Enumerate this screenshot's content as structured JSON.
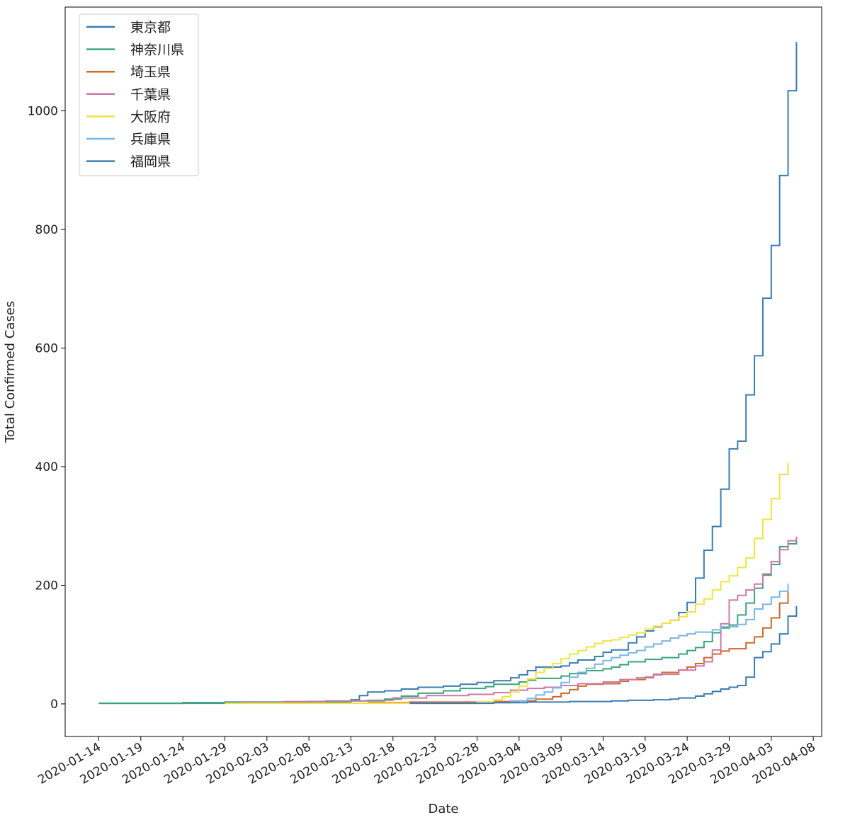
{
  "chart_data": {
    "type": "line",
    "step": true,
    "title": "",
    "xlabel": "Date",
    "ylabel": "Total Confirmed Cases",
    "xlim": [
      "2020-01-10",
      "2020-04-09"
    ],
    "ylim": [
      -55,
      1175
    ],
    "x_ticks": [
      "2020-01-14",
      "2020-01-19",
      "2020-01-24",
      "2020-01-29",
      "2020-02-03",
      "2020-02-08",
      "2020-02-13",
      "2020-02-18",
      "2020-02-23",
      "2020-02-28",
      "2020-03-04",
      "2020-03-09",
      "2020-03-14",
      "2020-03-19",
      "2020-03-24",
      "2020-03-29",
      "2020-04-03",
      "2020-04-08"
    ],
    "y_ticks": [
      0,
      200,
      400,
      600,
      800,
      1000
    ],
    "legend_position": "upper-left",
    "grid": false,
    "series": [
      {
        "name": "東京都",
        "color": "#3a7db5",
        "points": [
          [
            "2020-01-14",
            1
          ],
          [
            "2020-01-24",
            2
          ],
          [
            "2020-01-29",
            3
          ],
          [
            "2020-02-03",
            3
          ],
          [
            "2020-02-08",
            4
          ],
          [
            "2020-02-13",
            7
          ],
          [
            "2020-02-14",
            14
          ],
          [
            "2020-02-15",
            20
          ],
          [
            "2020-02-17",
            22
          ],
          [
            "2020-02-19",
            25
          ],
          [
            "2020-02-21",
            28
          ],
          [
            "2020-02-24",
            30
          ],
          [
            "2020-02-26",
            33
          ],
          [
            "2020-02-28",
            36
          ],
          [
            "2020-03-01",
            39
          ],
          [
            "2020-03-03",
            44
          ],
          [
            "2020-03-04",
            49
          ],
          [
            "2020-03-05",
            56
          ],
          [
            "2020-03-06",
            62
          ],
          [
            "2020-03-09",
            64
          ],
          [
            "2020-03-10",
            69
          ],
          [
            "2020-03-11",
            74
          ],
          [
            "2020-03-13",
            80
          ],
          [
            "2020-03-14",
            87
          ],
          [
            "2020-03-15",
            91
          ],
          [
            "2020-03-17",
            103
          ],
          [
            "2020-03-18",
            113
          ],
          [
            "2020-03-19",
            123
          ],
          [
            "2020-03-20",
            130
          ],
          [
            "2020-03-21",
            136
          ],
          [
            "2020-03-22",
            141
          ],
          [
            "2020-03-23",
            154
          ],
          [
            "2020-03-24",
            171
          ],
          [
            "2020-03-25",
            212
          ],
          [
            "2020-03-26",
            259
          ],
          [
            "2020-03-27",
            299
          ],
          [
            "2020-03-28",
            362
          ],
          [
            "2020-03-29",
            430
          ],
          [
            "2020-03-30",
            443
          ],
          [
            "2020-03-31",
            521
          ],
          [
            "2020-04-01",
            587
          ],
          [
            "2020-04-02",
            684
          ],
          [
            "2020-04-03",
            773
          ],
          [
            "2020-04-04",
            891
          ],
          [
            "2020-04-05",
            1034
          ],
          [
            "2020-04-06",
            1116
          ]
        ]
      },
      {
        "name": "神奈川県",
        "color": "#3aa57a",
        "points": [
          [
            "2020-01-14",
            1
          ],
          [
            "2020-01-29",
            2
          ],
          [
            "2020-02-08",
            3
          ],
          [
            "2020-02-13",
            5
          ],
          [
            "2020-02-17",
            8
          ],
          [
            "2020-02-19",
            13
          ],
          [
            "2020-02-21",
            18
          ],
          [
            "2020-02-24",
            22
          ],
          [
            "2020-02-26",
            26
          ],
          [
            "2020-02-29",
            29
          ],
          [
            "2020-03-01",
            33
          ],
          [
            "2020-03-04",
            37
          ],
          [
            "2020-03-05",
            40
          ],
          [
            "2020-03-06",
            43
          ],
          [
            "2020-03-09",
            47
          ],
          [
            "2020-03-10",
            51
          ],
          [
            "2020-03-12",
            56
          ],
          [
            "2020-03-14",
            59
          ],
          [
            "2020-03-15",
            62
          ],
          [
            "2020-03-16",
            66
          ],
          [
            "2020-03-17",
            71
          ],
          [
            "2020-03-19",
            75
          ],
          [
            "2020-03-21",
            78
          ],
          [
            "2020-03-23",
            84
          ],
          [
            "2020-03-24",
            90
          ],
          [
            "2020-03-25",
            95
          ],
          [
            "2020-03-26",
            105
          ],
          [
            "2020-03-27",
            120
          ],
          [
            "2020-03-28",
            128
          ],
          [
            "2020-03-29",
            133
          ],
          [
            "2020-03-30",
            150
          ],
          [
            "2020-03-31",
            170
          ],
          [
            "2020-04-01",
            195
          ],
          [
            "2020-04-02",
            217
          ],
          [
            "2020-04-03",
            235
          ],
          [
            "2020-04-04",
            265
          ],
          [
            "2020-04-05",
            270
          ],
          [
            "2020-04-06",
            280
          ]
        ]
      },
      {
        "name": "埼玉県",
        "color": "#d0692b",
        "points": [
          [
            "2020-02-15",
            2
          ],
          [
            "2020-02-20",
            3
          ],
          [
            "2020-02-25",
            3
          ],
          [
            "2020-03-01",
            4
          ],
          [
            "2020-03-04",
            5
          ],
          [
            "2020-03-06",
            8
          ],
          [
            "2020-03-08",
            12
          ],
          [
            "2020-03-09",
            18
          ],
          [
            "2020-03-10",
            24
          ],
          [
            "2020-03-11",
            30
          ],
          [
            "2020-03-12",
            33
          ],
          [
            "2020-03-14",
            34
          ],
          [
            "2020-03-16",
            38
          ],
          [
            "2020-03-17",
            41
          ],
          [
            "2020-03-19",
            45
          ],
          [
            "2020-03-20",
            49
          ],
          [
            "2020-03-21",
            53
          ],
          [
            "2020-03-23",
            57
          ],
          [
            "2020-03-24",
            62
          ],
          [
            "2020-03-25",
            68
          ],
          [
            "2020-03-26",
            78
          ],
          [
            "2020-03-27",
            84
          ],
          [
            "2020-03-28",
            89
          ],
          [
            "2020-03-29",
            93
          ],
          [
            "2020-03-31",
            103
          ],
          [
            "2020-04-01",
            113
          ],
          [
            "2020-04-02",
            128
          ],
          [
            "2020-04-03",
            145
          ],
          [
            "2020-04-04",
            170
          ],
          [
            "2020-04-05",
            190
          ]
        ]
      },
      {
        "name": "千葉県",
        "color": "#cc79a7",
        "points": [
          [
            "2020-01-31",
            2
          ],
          [
            "2020-02-05",
            4
          ],
          [
            "2020-02-10",
            5
          ],
          [
            "2020-02-15",
            6
          ],
          [
            "2020-02-18",
            10
          ],
          [
            "2020-02-22",
            14
          ],
          [
            "2020-02-27",
            16
          ],
          [
            "2020-03-01",
            19
          ],
          [
            "2020-03-03",
            23
          ],
          [
            "2020-03-05",
            26
          ],
          [
            "2020-03-07",
            28
          ],
          [
            "2020-03-09",
            31
          ],
          [
            "2020-03-11",
            34
          ],
          [
            "2020-03-14",
            37
          ],
          [
            "2020-03-16",
            41
          ],
          [
            "2020-03-18",
            44
          ],
          [
            "2020-03-20",
            50
          ],
          [
            "2020-03-23",
            57
          ],
          [
            "2020-03-25",
            64
          ],
          [
            "2020-03-26",
            71
          ],
          [
            "2020-03-27",
            91
          ],
          [
            "2020-03-28",
            135
          ],
          [
            "2020-03-29",
            175
          ],
          [
            "2020-03-30",
            183
          ],
          [
            "2020-03-31",
            192
          ],
          [
            "2020-04-01",
            202
          ],
          [
            "2020-04-02",
            219
          ],
          [
            "2020-04-03",
            240
          ],
          [
            "2020-04-04",
            260
          ],
          [
            "2020-04-05",
            275
          ],
          [
            "2020-04-06",
            282
          ]
        ]
      },
      {
        "name": "大阪府",
        "color": "#f0e442",
        "points": [
          [
            "2020-01-29",
            1
          ],
          [
            "2020-02-01",
            1
          ],
          [
            "2020-02-28",
            3
          ],
          [
            "2020-03-01",
            7
          ],
          [
            "2020-03-02",
            12
          ],
          [
            "2020-03-03",
            20
          ],
          [
            "2020-03-04",
            30
          ],
          [
            "2020-03-05",
            42
          ],
          [
            "2020-03-06",
            53
          ],
          [
            "2020-03-07",
            60
          ],
          [
            "2020-03-08",
            68
          ],
          [
            "2020-03-09",
            76
          ],
          [
            "2020-03-10",
            84
          ],
          [
            "2020-03-11",
            90
          ],
          [
            "2020-03-12",
            96
          ],
          [
            "2020-03-13",
            102
          ],
          [
            "2020-03-14",
            106
          ],
          [
            "2020-03-15",
            108
          ],
          [
            "2020-03-16",
            112
          ],
          [
            "2020-03-17",
            116
          ],
          [
            "2020-03-18",
            120
          ],
          [
            "2020-03-19",
            126
          ],
          [
            "2020-03-20",
            131
          ],
          [
            "2020-03-21",
            136
          ],
          [
            "2020-03-22",
            141
          ],
          [
            "2020-03-23",
            147
          ],
          [
            "2020-03-24",
            155
          ],
          [
            "2020-03-25",
            168
          ],
          [
            "2020-03-26",
            177
          ],
          [
            "2020-03-27",
            192
          ],
          [
            "2020-03-28",
            206
          ],
          [
            "2020-03-29",
            216
          ],
          [
            "2020-03-30",
            230
          ],
          [
            "2020-03-31",
            246
          ],
          [
            "2020-04-01",
            279
          ],
          [
            "2020-04-02",
            311
          ],
          [
            "2020-04-03",
            346
          ],
          [
            "2020-04-04",
            387
          ],
          [
            "2020-04-05",
            407
          ]
        ]
      },
      {
        "name": "兵庫県",
        "color": "#7ab6e8",
        "points": [
          [
            "2020-03-01",
            2
          ],
          [
            "2020-03-03",
            5
          ],
          [
            "2020-03-05",
            9
          ],
          [
            "2020-03-06",
            15
          ],
          [
            "2020-03-07",
            20
          ],
          [
            "2020-03-08",
            27
          ],
          [
            "2020-03-09",
            36
          ],
          [
            "2020-03-10",
            45
          ],
          [
            "2020-03-11",
            53
          ],
          [
            "2020-03-12",
            60
          ],
          [
            "2020-03-13",
            67
          ],
          [
            "2020-03-14",
            73
          ],
          [
            "2020-03-15",
            78
          ],
          [
            "2020-03-16",
            82
          ],
          [
            "2020-03-17",
            86
          ],
          [
            "2020-03-18",
            90
          ],
          [
            "2020-03-19",
            96
          ],
          [
            "2020-03-20",
            101
          ],
          [
            "2020-03-21",
            106
          ],
          [
            "2020-03-22",
            111
          ],
          [
            "2020-03-23",
            115
          ],
          [
            "2020-03-24",
            118
          ],
          [
            "2020-03-25",
            121
          ],
          [
            "2020-03-27",
            125
          ],
          [
            "2020-03-28",
            130
          ],
          [
            "2020-03-30",
            134
          ],
          [
            "2020-03-31",
            142
          ],
          [
            "2020-04-01",
            160
          ],
          [
            "2020-04-02",
            168
          ],
          [
            "2020-04-03",
            180
          ],
          [
            "2020-04-04",
            190
          ],
          [
            "2020-04-05",
            203
          ]
        ]
      },
      {
        "name": "福岡県",
        "color": "#3a7db5",
        "points": [
          [
            "2020-02-20",
            1
          ],
          [
            "2020-03-01",
            2
          ],
          [
            "2020-03-05",
            3
          ],
          [
            "2020-03-10",
            4
          ],
          [
            "2020-03-15",
            5
          ],
          [
            "2020-03-17",
            6
          ],
          [
            "2020-03-20",
            7
          ],
          [
            "2020-03-22",
            8
          ],
          [
            "2020-03-23",
            10
          ],
          [
            "2020-03-25",
            13
          ],
          [
            "2020-03-26",
            17
          ],
          [
            "2020-03-27",
            21
          ],
          [
            "2020-03-28",
            25
          ],
          [
            "2020-03-29",
            28
          ],
          [
            "2020-03-30",
            31
          ],
          [
            "2020-03-31",
            45
          ],
          [
            "2020-04-01",
            78
          ],
          [
            "2020-04-02",
            88
          ],
          [
            "2020-04-03",
            101
          ],
          [
            "2020-04-04",
            118
          ],
          [
            "2020-04-05",
            148
          ],
          [
            "2020-04-06",
            165
          ]
        ]
      }
    ]
  }
}
